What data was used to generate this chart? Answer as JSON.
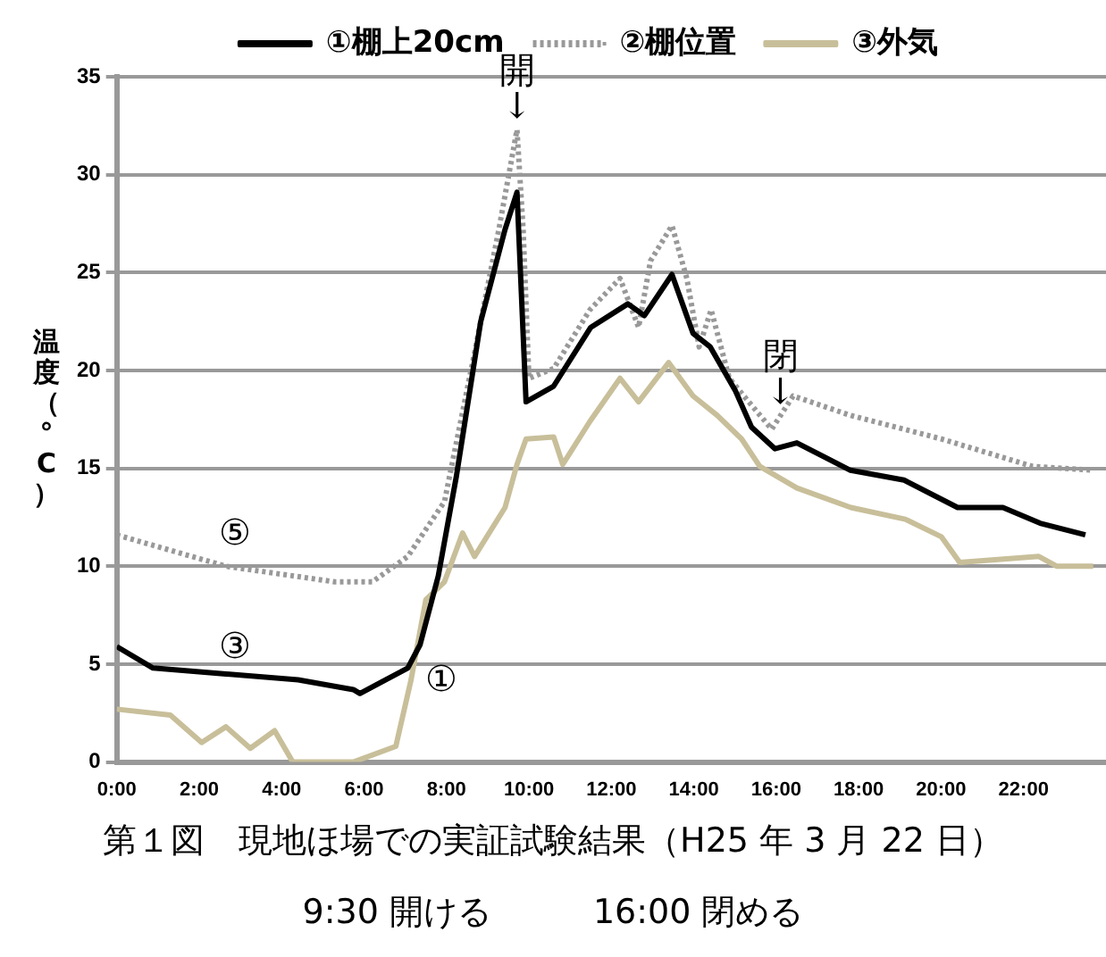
{
  "chart_data": {
    "type": "line",
    "ylabel": "温度（°C）",
    "xlim": [
      0,
      24
    ],
    "xticks": [
      {
        "value": 0,
        "label": "0:00"
      },
      {
        "value": 2,
        "label": "2:00"
      },
      {
        "value": 4,
        "label": "4:00"
      },
      {
        "value": 6,
        "label": "6:00"
      },
      {
        "value": 8,
        "label": "8:00"
      },
      {
        "value": 10,
        "label": "10:00"
      },
      {
        "value": 12,
        "label": "12:00"
      },
      {
        "value": 14,
        "label": "14:00"
      },
      {
        "value": 16,
        "label": "16:00"
      },
      {
        "value": 18,
        "label": "18:00"
      },
      {
        "value": 20,
        "label": "20:00"
      },
      {
        "value": 22,
        "label": "22:00"
      }
    ],
    "ylim": [
      0,
      35
    ],
    "yticks": [
      0,
      5,
      10,
      15,
      20,
      25,
      30,
      35
    ],
    "grid": "y",
    "legend": "top",
    "marker": "none",
    "series": [
      {
        "name": "①棚上20cm",
        "color": "#000000",
        "line_style": "solid",
        "x": [
          0,
          0.88,
          2.65,
          4.4,
          5.74,
          5.9,
          7.06,
          7.36,
          7.8,
          8.24,
          8.83,
          9.42,
          9.71,
          9.93,
          10.6,
          11.5,
          12.4,
          12.8,
          13.47,
          13.98,
          14.4,
          15.0,
          15.4,
          15.97,
          16.5,
          17.8,
          19.1,
          20.4,
          21.5,
          22.4,
          23.5
        ],
        "values": [
          5.9,
          4.8,
          4.5,
          4.2,
          3.7,
          3.5,
          4.8,
          6.0,
          9.5,
          14.6,
          22.5,
          27.2,
          29.1,
          18.4,
          19.2,
          22.2,
          23.4,
          22.8,
          24.9,
          21.9,
          21.2,
          19.0,
          17.1,
          16.0,
          16.3,
          14.9,
          14.4,
          13.0,
          13.0,
          12.2,
          11.6
        ]
      },
      {
        "name": "②棚位置",
        "color": "#999999",
        "line_style": "dotted",
        "x": [
          0,
          2.65,
          5.3,
          6.2,
          7.06,
          7.95,
          8.68,
          9.27,
          9.71,
          9.86,
          10.0,
          10.6,
          11.48,
          12.21,
          12.66,
          12.95,
          13.47,
          13.83,
          14.13,
          14.42,
          14.86,
          15.45,
          15.89,
          16.41,
          17.81,
          20.01,
          22.22,
          23.69
        ],
        "values": [
          11.6,
          10.0,
          9.2,
          9.2,
          10.5,
          13.3,
          20.9,
          27.2,
          32.3,
          27.2,
          19.6,
          20.1,
          23.1,
          24.7,
          22.2,
          25.6,
          27.4,
          24.7,
          21.2,
          23.1,
          19.6,
          18.1,
          17.0,
          18.7,
          17.7,
          16.5,
          15.1,
          14.9
        ]
      },
      {
        "name": "③外気",
        "color": "#c8bf9a",
        "line_style": "solid",
        "x": [
          0,
          1.3,
          2.06,
          2.65,
          3.24,
          3.83,
          4.27,
          5.74,
          6.77,
          7.14,
          7.5,
          7.95,
          8.39,
          8.68,
          9.42,
          9.71,
          9.93,
          10.6,
          10.82,
          11.48,
          12.21,
          12.66,
          13.39,
          13.98,
          14.57,
          15.16,
          15.6,
          16.5,
          17.81,
          19.13,
          20.01,
          20.45,
          22.37,
          22.81,
          23.69
        ],
        "values": [
          2.7,
          2.4,
          1.0,
          1.8,
          0.7,
          1.6,
          0.0,
          0.0,
          0.8,
          4.2,
          8.3,
          9.2,
          11.7,
          10.5,
          13.0,
          15.2,
          16.5,
          16.6,
          15.2,
          17.4,
          19.6,
          18.4,
          20.4,
          18.7,
          17.7,
          16.5,
          15.1,
          14.0,
          13.0,
          12.4,
          11.5,
          10.2,
          10.5,
          10.0,
          10.0
        ]
      }
    ],
    "annotations": [
      {
        "text": "開\n↓",
        "x": 9.71,
        "y": 32.3
      },
      {
        "text": "閉\n↓",
        "x": 16.1,
        "y": 17.7
      },
      {
        "text": "⑤",
        "x": 2.0,
        "y": 10.4
      },
      {
        "text": "③",
        "x": 2.0,
        "y": 4.6
      },
      {
        "text": "①",
        "x": 7.0,
        "y": 2.9
      },
      "第１図　現地ほ場での実証試験結果（H25 年 3 月 22 日）",
      "9:30 開ける　　　16:00 閉める"
    ]
  }
}
